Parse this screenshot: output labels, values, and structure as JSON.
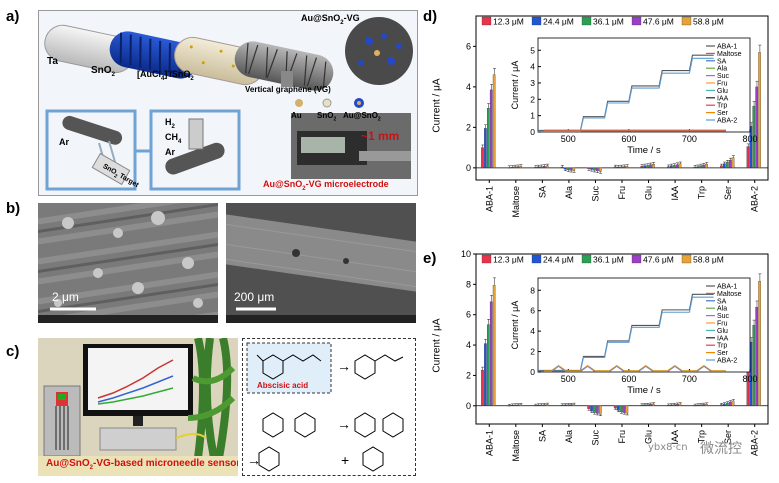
{
  "panels": {
    "a": {
      "label": "a)",
      "texts": {
        "ta": "Ta",
        "sno2": "SnO",
        "sno2_sub": "2",
        "aucl": "[AuCl",
        "aucl_sub1": "4",
        "aucl_mid": "]",
        "aucl_sup": "-",
        "aucl_tail": "/SnO",
        "aucl_sub2": "2",
        "au_sno2_vg_top": "Au@SnO",
        "au_sno2_vg_top_sub": "2",
        "au_sno2_vg_top_tail": "-VG",
        "vg": "Vertical graphene (VG)",
        "au": "Au",
        "sno2_leg": "SnO",
        "sno2_leg_sub": "2",
        "ausno2_leg": "Au@SnO",
        "ausno2_leg_sub": "2",
        "ar1": "Ar",
        "ar2": "Ar",
        "h2": "H",
        "h2_sub": "2",
        "ch4": "CH",
        "ch4_sub": "4",
        "target": "SnO",
        "target_sub": "2",
        "target_tail": " Target",
        "mm": "~1 mm",
        "microelectrode": "Au@SnO",
        "microelectrode_sub": "2",
        "microelectrode_tail": "-VG microelectrode"
      }
    },
    "b": {
      "label": "b)",
      "scale_left": "2 μm",
      "scale_right": "200 μm"
    },
    "c": {
      "label": "c)",
      "abscisic": "Abscisic acid",
      "sensor": "Au@SnO",
      "sensor_sub": "2",
      "sensor_tail": "-VG-based microneedle sensor"
    },
    "d": {
      "label": "d)",
      "ylabel": "Current / μA",
      "yticks": [
        "0",
        "2",
        "4",
        "6"
      ],
      "legend": [
        "12.3 μM",
        "24.4 μM",
        "36.1 μM",
        "47.6 μM",
        "58.8 μM"
      ],
      "inset_xlabel": "Time / s",
      "inset_ylabel": "Current / μA",
      "inset_xticks": [
        "500",
        "600",
        "700",
        "800"
      ],
      "inset_yticks": [
        "0",
        "1",
        "2",
        "3",
        "4",
        "5"
      ],
      "inset_legend": [
        "ABA-1",
        "Maltose",
        "SA",
        "Ala",
        "Suc",
        "Fru",
        "Glu",
        "IAA",
        "Trp",
        "Ser",
        "ABA-2"
      ]
    },
    "e": {
      "label": "e)",
      "ylabel": "Current / μA",
      "yticks": [
        "0",
        "2",
        "4",
        "6",
        "8",
        "10"
      ],
      "legend": [
        "12.3 μM",
        "24.4 μM",
        "36.1 μM",
        "47.6 μM",
        "58.8 μM"
      ],
      "inset_xlabel": "Time / s",
      "inset_ylabel": "Current / μA",
      "inset_xticks": [
        "500",
        "600",
        "700",
        "800"
      ],
      "inset_yticks": [
        "0",
        "2",
        "4",
        "6",
        "8"
      ],
      "inset_legend": [
        "ABA-1",
        "Maltose",
        "SA",
        "Ala",
        "Suc",
        "Fru",
        "Glu",
        "IAA",
        "Trp",
        "Ser",
        "ABA-2"
      ]
    }
  },
  "categories": [
    "ABA-1",
    "Maltose",
    "SA",
    "Ala",
    "Suc",
    "Fru",
    "Glu",
    "IAA",
    "Trp",
    "Ser",
    "ABA-2"
  ],
  "series_colors": [
    "#e8334a",
    "#2255d6",
    "#2aa055",
    "#9a3fc6",
    "#e8a23a"
  ],
  "inset_colors": {
    "aba": "#555555",
    "aba2": "#5b9bd5",
    "others": [
      "#e05050",
      "#4477cc",
      "#66aa44",
      "#aa66cc",
      "#ff9933",
      "#44bbbb",
      "#222222",
      "#dd4444",
      "#ee8800",
      "#7799dd"
    ]
  },
  "watermark": {
    "site": "ybx8",
    "dot": "·",
    "tld": "cn",
    "brand": "微流控"
  },
  "chart_data": [
    {
      "type": "bar",
      "panel": "d",
      "title": "",
      "xlabel": "",
      "ylabel": "Current / μA",
      "ylim": [
        -0.6,
        7.5
      ],
      "categories": [
        "ABA-1",
        "Maltose",
        "SA",
        "Ala",
        "Suc",
        "Fru",
        "Glu",
        "IAA",
        "Trp",
        "Ser",
        "ABA-2"
      ],
      "series": [
        {
          "name": "12.3 μM",
          "values": [
            1.0,
            0.02,
            0.03,
            0.04,
            -0.05,
            0.05,
            0.08,
            0.06,
            0.04,
            0.1,
            1.05
          ]
        },
        {
          "name": "24.4 μM",
          "values": [
            1.95,
            0.03,
            0.05,
            -0.06,
            -0.08,
            0.04,
            0.1,
            0.1,
            0.06,
            0.2,
            2.05
          ]
        },
        {
          "name": "36.1 μM",
          "values": [
            2.95,
            0.05,
            0.06,
            -0.1,
            -0.12,
            0.05,
            0.12,
            0.12,
            0.1,
            0.28,
            3.05
          ]
        },
        {
          "name": "47.6 μM",
          "values": [
            3.85,
            0.06,
            0.08,
            -0.12,
            -0.15,
            0.06,
            0.15,
            0.16,
            0.14,
            0.38,
            4.0
          ]
        },
        {
          "name": "58.8 μM",
          "values": [
            4.6,
            0.08,
            0.1,
            -0.14,
            -0.18,
            0.08,
            0.18,
            0.2,
            0.18,
            0.5,
            5.7
          ]
        }
      ]
    },
    {
      "type": "bar",
      "panel": "e",
      "title": "",
      "xlabel": "",
      "ylabel": "Current / μA",
      "ylim": [
        -1.2,
        10
      ],
      "categories": [
        "ABA-1",
        "Maltose",
        "SA",
        "Ala",
        "Suc",
        "Fru",
        "Glu",
        "IAA",
        "Trp",
        "Ser",
        "ABA-2"
      ],
      "series": [
        {
          "name": "12.3 μM",
          "values": [
            2.35,
            0.02,
            0.03,
            0.05,
            -0.2,
            -0.15,
            0.05,
            0.04,
            0.03,
            0.08,
            2.3
          ]
        },
        {
          "name": "24.4 μM",
          "values": [
            4.1,
            0.04,
            0.05,
            0.06,
            -0.35,
            -0.3,
            0.07,
            0.06,
            0.05,
            0.12,
            4.2
          ]
        },
        {
          "name": "36.1 μM",
          "values": [
            5.35,
            0.05,
            0.06,
            0.07,
            -0.45,
            -0.4,
            0.08,
            0.08,
            0.07,
            0.18,
            5.3
          ]
        },
        {
          "name": "47.6 μM",
          "values": [
            6.85,
            0.06,
            0.07,
            0.08,
            -0.5,
            -0.45,
            0.1,
            0.1,
            0.09,
            0.25,
            6.5
          ]
        },
        {
          "name": "58.8 μM",
          "values": [
            7.95,
            0.08,
            0.09,
            0.09,
            -0.55,
            -0.5,
            0.12,
            0.12,
            0.11,
            0.32,
            8.2
          ]
        }
      ]
    }
  ]
}
